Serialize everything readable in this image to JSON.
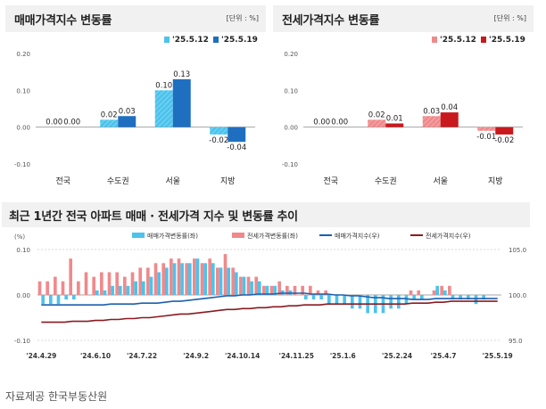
{
  "source_text": "자료제공 한국부동산원",
  "colors": {
    "light_blue": "#4cc3ec",
    "dark_blue": "#1f6fc0",
    "light_red": "#f0898b",
    "dark_red": "#c8191e",
    "navy_line": "#1c5fae",
    "maroon_line": "#8a1a20"
  },
  "chart_data": [
    {
      "type": "bar",
      "title": "매매가격지수 변동률",
      "unit": "[단위 : %]",
      "categories": [
        "전국",
        "수도권",
        "서울",
        "지방"
      ],
      "series": [
        {
          "name": "'25.5.12",
          "values": [
            0.0,
            0.02,
            0.1,
            -0.02
          ],
          "labels": [
            "0.00",
            "0.02",
            "0.10",
            "-0.02"
          ]
        },
        {
          "name": "'25.5.19",
          "values": [
            0.0,
            0.03,
            0.13,
            -0.04
          ],
          "labels": [
            "0.00",
            "0.03",
            "0.13",
            "-0.04"
          ]
        }
      ],
      "ylim": [
        -0.1,
        0.2
      ],
      "yticks": [
        "0.20",
        "0.10",
        "0.00",
        "-0.10"
      ],
      "legend_position": "top-right",
      "grid": false
    },
    {
      "type": "bar",
      "title": "전세가격지수 변동률",
      "unit": "[단위 : %]",
      "categories": [
        "전국",
        "수도권",
        "서울",
        "지방"
      ],
      "series": [
        {
          "name": "'25.5.12",
          "values": [
            0.0,
            0.02,
            0.03,
            -0.01
          ],
          "labels": [
            "0.00",
            "0.02",
            "0.03",
            "-0.01"
          ]
        },
        {
          "name": "'25.5.19",
          "values": [
            0.0,
            0.01,
            0.04,
            -0.02
          ],
          "labels": [
            "0.00",
            "0.01",
            "0.04",
            "-0.02"
          ]
        }
      ],
      "ylim": [
        -0.1,
        0.2
      ],
      "yticks": [
        "0.20",
        "0.10",
        "0.00",
        "-0.10"
      ],
      "legend_position": "top-right",
      "grid": false
    },
    {
      "type": "bar+line",
      "title": "최근 1년간 전국 아파트 매매 · 전세가격 지수 및 변동률 추이",
      "left_axis_label": "(%)",
      "left_ylim": [
        -0.1,
        0.1
      ],
      "left_yticks": [
        "0.10",
        "0.00",
        "-0.10"
      ],
      "right_ylim": [
        95.0,
        105.0
      ],
      "right_yticks": [
        "105.0",
        "100.0",
        "95.0"
      ],
      "x_tick_labels": [
        "'24.4.29",
        "'24.6.10",
        "'24.7.22",
        "'24.9.2",
        "'24.10.14",
        "'24.11.25",
        "'25.1.6",
        "'25.2.24",
        "'25.4.7",
        "'25.5.19"
      ],
      "legend": [
        "매매가격변동률(좌)",
        "전세가격변동률(좌)",
        "매매가격지수(우)",
        "전세가격지수(우)"
      ],
      "sale_change": [
        -0.02,
        -0.02,
        -0.02,
        -0.01,
        -0.01,
        0.0,
        0.0,
        0.01,
        0.01,
        0.02,
        0.02,
        0.02,
        0.03,
        0.03,
        0.04,
        0.05,
        0.06,
        0.07,
        0.07,
        0.07,
        0.08,
        0.07,
        0.07,
        0.06,
        0.06,
        0.05,
        0.04,
        0.03,
        0.03,
        0.02,
        0.02,
        0.01,
        0.01,
        0.0,
        -0.01,
        -0.01,
        -0.01,
        -0.02,
        -0.02,
        -0.02,
        -0.03,
        -0.03,
        -0.04,
        -0.04,
        -0.04,
        -0.03,
        -0.03,
        -0.02,
        -0.01,
        -0.01,
        0.0,
        0.02,
        0.01,
        -0.01,
        -0.01,
        -0.01,
        -0.02,
        -0.01,
        0.0,
        0.0
      ],
      "jeonse_change": [
        0.03,
        0.03,
        0.04,
        0.03,
        0.08,
        0.03,
        0.05,
        0.04,
        0.05,
        0.05,
        0.05,
        0.04,
        0.05,
        0.06,
        0.06,
        0.07,
        0.07,
        0.08,
        0.08,
        0.07,
        0.08,
        0.07,
        0.08,
        0.06,
        0.09,
        0.06,
        0.04,
        0.04,
        0.04,
        0.02,
        0.02,
        0.03,
        0.02,
        0.02,
        0.02,
        0.02,
        0.01,
        0.01,
        0.0,
        0.0,
        0.0,
        0.0,
        0.0,
        0.0,
        0.0,
        0.0,
        0.0,
        0.0,
        0.01,
        0.01,
        0.0,
        0.01,
        0.02,
        0.02,
        0.0,
        0.0,
        0.0,
        0.0,
        0.0,
        0.0
      ],
      "sale_index": [
        98.9,
        98.9,
        98.9,
        98.9,
        98.9,
        98.9,
        98.9,
        98.9,
        98.9,
        99.0,
        99.0,
        99.0,
        99.0,
        99.1,
        99.1,
        99.1,
        99.2,
        99.3,
        99.3,
        99.4,
        99.5,
        99.6,
        99.7,
        99.8,
        99.9,
        99.9,
        100.0,
        100.0,
        100.1,
        100.1,
        100.1,
        100.2,
        100.2,
        100.2,
        100.2,
        100.1,
        100.1,
        100.1,
        100.0,
        100.0,
        99.9,
        99.9,
        99.8,
        99.7,
        99.7,
        99.6,
        99.6,
        99.6,
        99.5,
        99.5,
        99.5,
        99.6,
        99.6,
        99.6,
        99.6,
        99.6,
        99.6,
        99.6,
        99.6,
        99.6
      ],
      "jeonse_index": [
        97.0,
        97.0,
        97.0,
        97.0,
        97.1,
        97.1,
        97.1,
        97.2,
        97.2,
        97.3,
        97.3,
        97.4,
        97.4,
        97.5,
        97.5,
        97.6,
        97.7,
        97.8,
        97.9,
        97.9,
        98.0,
        98.1,
        98.2,
        98.3,
        98.4,
        98.4,
        98.5,
        98.5,
        98.6,
        98.6,
        98.7,
        98.7,
        98.8,
        98.8,
        98.9,
        98.9,
        98.9,
        99.0,
        99.0,
        99.0,
        99.0,
        99.0,
        99.0,
        99.0,
        99.0,
        99.0,
        99.0,
        99.0,
        99.1,
        99.1,
        99.1,
        99.2,
        99.2,
        99.3,
        99.3,
        99.3,
        99.3,
        99.3,
        99.3,
        99.3
      ]
    }
  ]
}
